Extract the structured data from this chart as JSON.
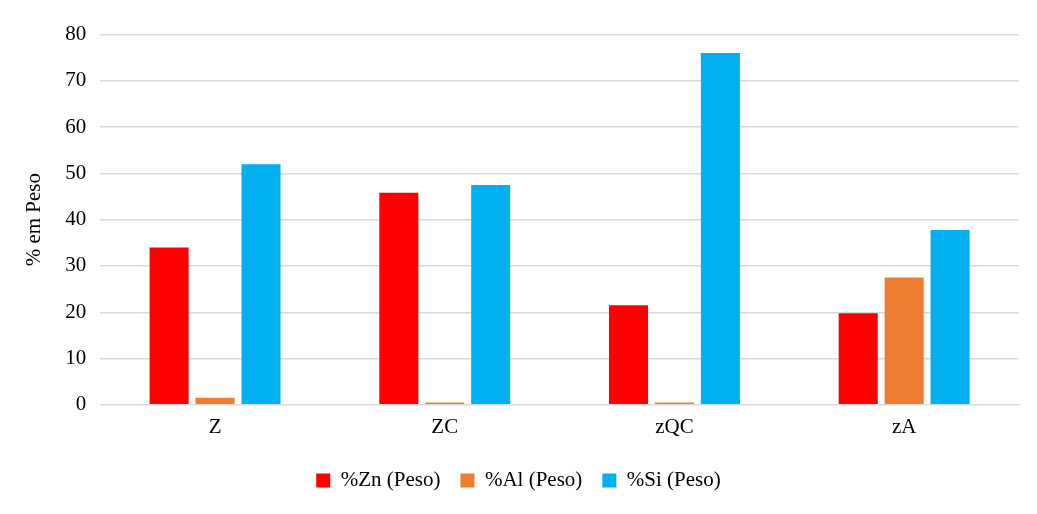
{
  "chart_data": {
    "type": "bar",
    "ylabel": "% em Peso",
    "categories": [
      "Z",
      "ZC",
      "zQC",
      "zA"
    ],
    "series": [
      {
        "name": "%Zn (Peso)",
        "color": "#ff0000",
        "values": [
          34,
          45.8,
          21.5,
          19.8
        ]
      },
      {
        "name": "%Al (Peso)",
        "color": "#ed7d31",
        "values": [
          1.5,
          0.5,
          0.5,
          27.5
        ]
      },
      {
        "name": "%Si (Peso)",
        "color": "#00b0f0",
        "values": [
          52,
          47.5,
          76,
          37.8
        ]
      }
    ],
    "ylim": [
      0,
      80
    ],
    "yticks": [
      0,
      10,
      20,
      30,
      40,
      50,
      60,
      70,
      80
    ],
    "grid": "y",
    "legend": "bottom"
  }
}
